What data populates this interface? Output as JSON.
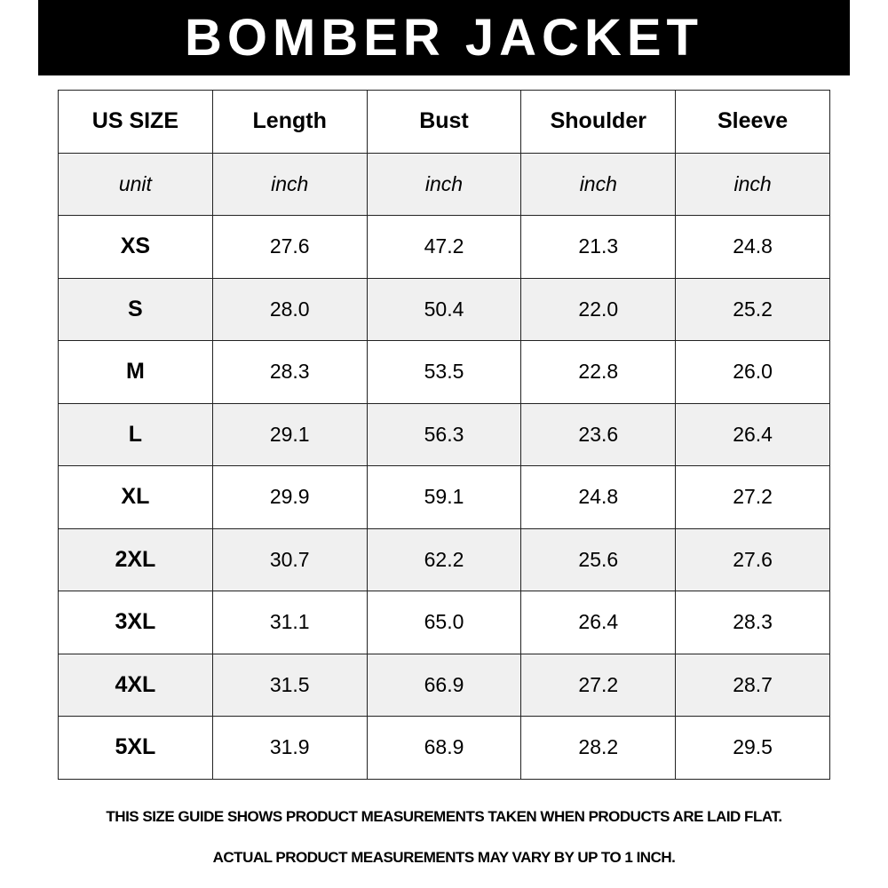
{
  "title": "BOMBER JACKET",
  "table": {
    "headers": [
      "US SIZE",
      "Length",
      "Bust",
      "Shoulder",
      "Sleeve"
    ],
    "units": [
      "unit",
      "inch",
      "inch",
      "inch",
      "inch"
    ],
    "rows": [
      [
        "XS",
        "27.6",
        "47.2",
        "21.3",
        "24.8"
      ],
      [
        "S",
        "28.0",
        "50.4",
        "22.0",
        "25.2"
      ],
      [
        "M",
        "28.3",
        "53.5",
        "22.8",
        "26.0"
      ],
      [
        "L",
        "29.1",
        "56.3",
        "23.6",
        "26.4"
      ],
      [
        "XL",
        "29.9",
        "59.1",
        "24.8",
        "27.2"
      ],
      [
        "2XL",
        "30.7",
        "62.2",
        "25.6",
        "27.6"
      ],
      [
        "3XL",
        "31.1",
        "65.0",
        "26.4",
        "28.3"
      ],
      [
        "4XL",
        "31.5",
        "66.9",
        "27.2",
        "28.7"
      ],
      [
        "5XL",
        "31.9",
        "68.9",
        "28.2",
        "29.5"
      ]
    ]
  },
  "footer": {
    "line1": "THIS SIZE GUIDE SHOWS PRODUCT MEASUREMENTS TAKEN WHEN PRODUCTS ARE LAID FLAT.",
    "line2": "ACTUAL PRODUCT MEASUREMENTS MAY VARY BY UP TO 1 INCH."
  },
  "colors": {
    "title_bg": "#000000",
    "title_text": "#ffffff",
    "alt_row": "#f0f0f0"
  }
}
